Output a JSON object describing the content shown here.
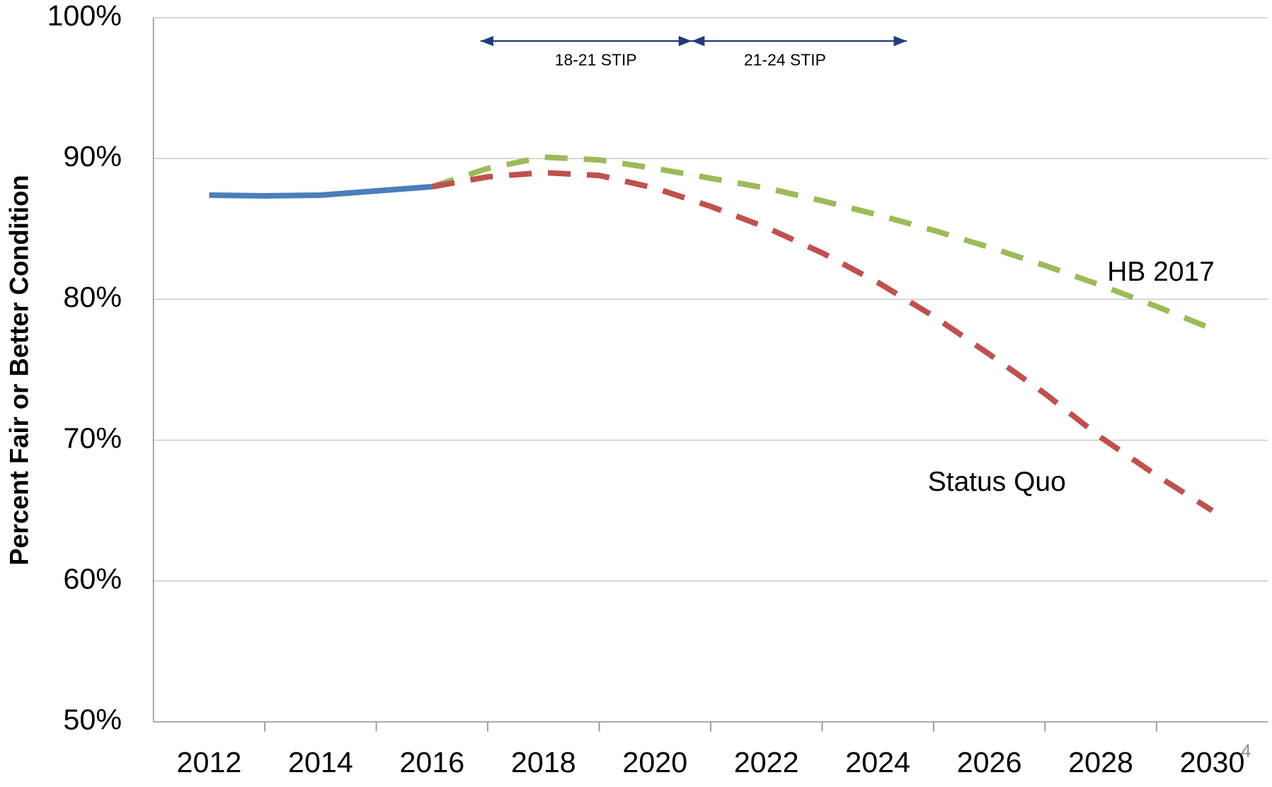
{
  "chart_data": {
    "type": "line",
    "ylabel": "Percent Fair or Better Condition",
    "x": [
      2012,
      2013,
      2014,
      2015,
      2016,
      2017,
      2018,
      2019,
      2020,
      2021,
      2022,
      2023,
      2024,
      2025,
      2026,
      2027,
      2028,
      2029,
      2030
    ],
    "series": [
      {
        "color": "#4a7ebb",
        "style": "solid",
        "values": [
          87.4,
          87.35,
          87.4,
          87.7,
          88.0,
          null,
          null,
          null,
          null,
          null,
          null,
          null,
          null,
          null,
          null,
          null,
          null,
          null,
          null
        ]
      },
      {
        "name": "HB 2017",
        "color": "#9bbb59",
        "style": "dashed",
        "values": [
          null,
          null,
          null,
          null,
          88.0,
          89.3,
          90.1,
          89.9,
          89.3,
          88.6,
          87.9,
          87.0,
          86.0,
          84.9,
          83.7,
          82.4,
          81.0,
          79.5,
          77.9
        ]
      },
      {
        "name": "Status Quo",
        "color": "#c0504d",
        "style": "dashed",
        "values": [
          null,
          null,
          null,
          null,
          88.0,
          88.7,
          89.0,
          88.8,
          87.9,
          86.6,
          85.1,
          83.3,
          81.2,
          78.8,
          76.1,
          73.3,
          70.2,
          67.5,
          65.0
        ]
      }
    ],
    "annotations": [
      "18-21 STIP",
      "21-24 STIP"
    ],
    "page_number": "4",
    "xlim": [
      2011,
      2031
    ],
    "xticks": [
      2012,
      2014,
      2016,
      2018,
      2020,
      2022,
      2024,
      2026,
      2028,
      2030
    ],
    "ylim": [
      50,
      100
    ],
    "yticks": [
      {
        "value": 50,
        "label": "50%"
      },
      {
        "value": 60,
        "label": "60%"
      },
      {
        "value": 70,
        "label": "70%"
      },
      {
        "value": 80,
        "label": "80%"
      },
      {
        "value": 90,
        "label": "90%"
      },
      {
        "value": 100,
        "label": "100%"
      }
    ],
    "grid": true
  }
}
